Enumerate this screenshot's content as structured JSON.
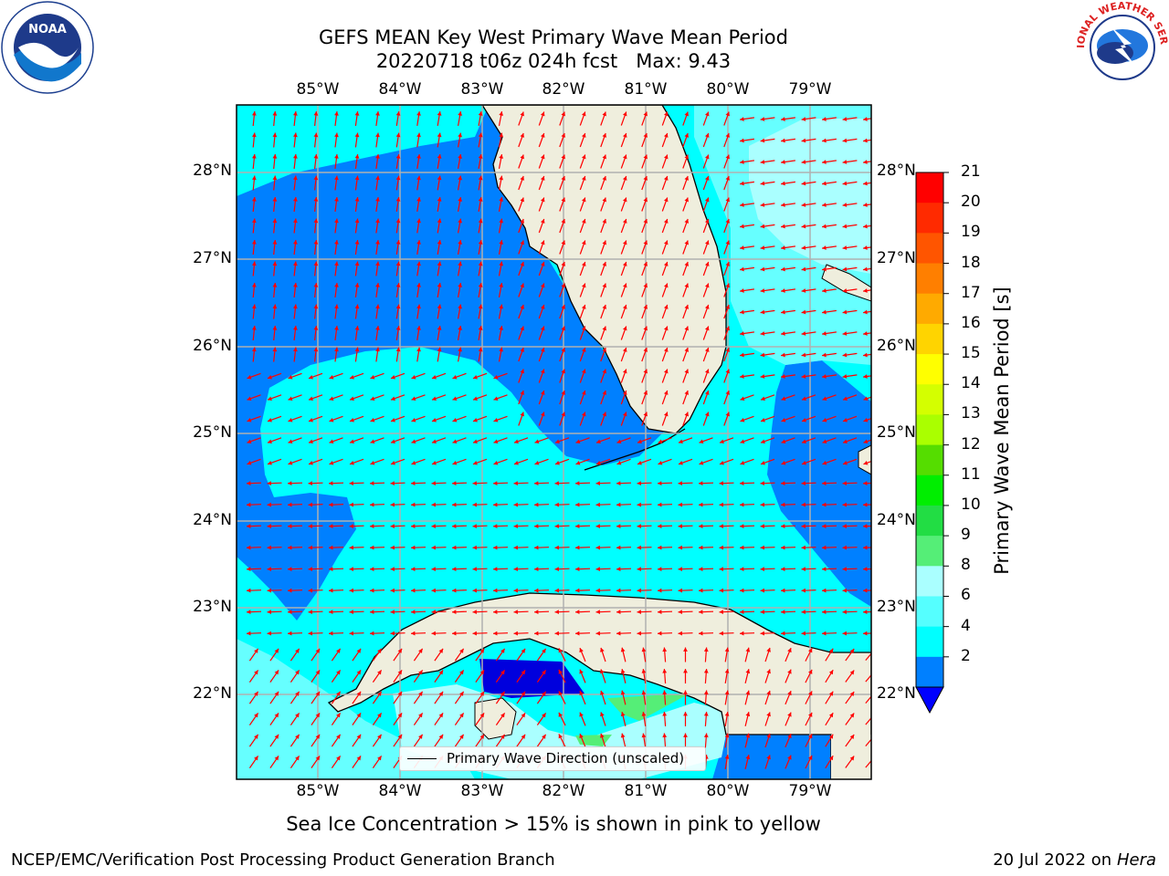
{
  "title_line1": "GEFS MEAN Key West Primary Wave Mean Period",
  "title_line2": "20220718 t06z 024h fcst   Max: 9.43",
  "subtitle": "Sea Ice Concentration > 15% is shown in pink to yellow",
  "footer_left": "NCEP/EMC/Verification Post Processing Product Generation Branch",
  "footer_right_date": "20 Jul 2022 on",
  "footer_right_host": "Hera",
  "legend_label": "Primary Wave Direction (unscaled)",
  "lon_labels": [
    "85°W",
    "84°W",
    "83°W",
    "82°W",
    "81°W",
    "80°W",
    "79°W"
  ],
  "lat_labels": [
    "28°N",
    "27°N",
    "26°N",
    "25°N",
    "24°N",
    "23°N",
    "22°N"
  ],
  "colorbar": {
    "title": "Primary Wave Mean Period [s]",
    "tick_labels": [
      "21",
      "20",
      "19",
      "18",
      "17",
      "16",
      "15",
      "14",
      "13",
      "12",
      "11",
      "10",
      "9",
      "8",
      "6",
      "4",
      "2"
    ],
    "colors": [
      "#ff0000",
      "#ff2a00",
      "#ff5500",
      "#ff7f00",
      "#ffaa00",
      "#ffd400",
      "#ffff00",
      "#d4ff00",
      "#aaff00",
      "#55dd00",
      "#00ee00",
      "#22dd44",
      "#55ee77",
      "#aaffff",
      "#55ffff",
      "#00ffff",
      "#0080ff"
    ],
    "under_color": "#0000ff"
  },
  "colors": {
    "land": "#efeedd",
    "deep_blue": "#0066ff",
    "cyan": "#00ffff",
    "light_cyan": "#66ffff",
    "very_light_cyan": "#aaffff",
    "dark_blue": "#0000dd",
    "green": "#55ee77",
    "arrow": "#ff0000"
  },
  "logos": {
    "noaa_text": "NOAA",
    "nws_text": "NATIONAL WEATHER SERVICE"
  }
}
